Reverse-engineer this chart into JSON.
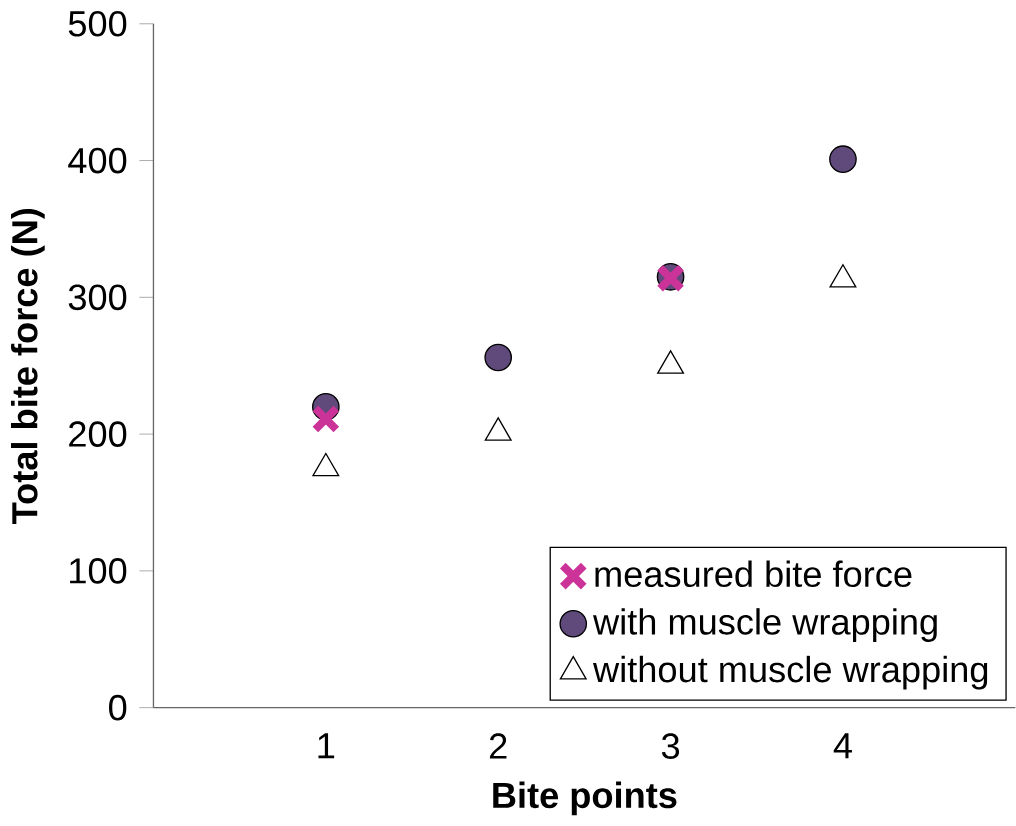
{
  "chart_data": {
    "type": "scatter",
    "xlabel": "Bite points",
    "ylabel": "Total bite force (N)",
    "xlim": [
      0,
      5
    ],
    "xticks": [
      1,
      2,
      3,
      4
    ],
    "ylim": [
      0,
      500
    ],
    "yticks": [
      0,
      100,
      200,
      300,
      400,
      500
    ],
    "grid": false,
    "legend": "bottom right",
    "series": [
      {
        "name": "measured bite force",
        "color": "#cc3399",
        "marker": "cross",
        "x": [
          1,
          3
        ],
        "values": [
          211,
          314
        ]
      },
      {
        "name": "with muscle wrapping",
        "color": "#604a7b",
        "marker": "circle",
        "x": [
          1,
          2,
          3,
          4
        ],
        "values": [
          220,
          256,
          315,
          401
        ]
      },
      {
        "name": "without muscle wrapping",
        "color": "#ffffff",
        "marker": "triangle",
        "x": [
          1,
          2,
          3,
          4
        ],
        "values": [
          175,
          201,
          250,
          313
        ]
      }
    ]
  }
}
